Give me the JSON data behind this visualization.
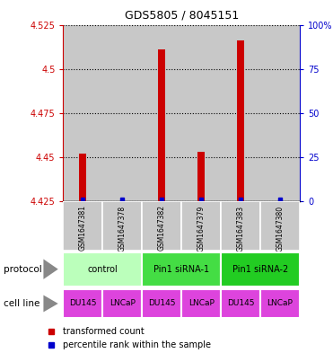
{
  "title": "GDS5805 / 8045151",
  "samples": [
    "GSM1647381",
    "GSM1647378",
    "GSM1647382",
    "GSM1647379",
    "GSM1647383",
    "GSM1647380"
  ],
  "red_values": [
    4.452,
    4.425,
    4.511,
    4.453,
    4.516,
    4.425
  ],
  "blue_percentiles": [
    2,
    2,
    2,
    2,
    3,
    2
  ],
  "ylim_left": [
    4.425,
    4.525
  ],
  "ylim_right": [
    0,
    100
  ],
  "yticks_left": [
    4.425,
    4.45,
    4.475,
    4.5,
    4.525
  ],
  "yticks_right": [
    0,
    25,
    50,
    75,
    100
  ],
  "ytick_labels_left": [
    "4.425",
    "4.45",
    "4.475",
    "4.5",
    "4.525"
  ],
  "ytick_labels_right": [
    "0",
    "25",
    "50",
    "75",
    "100%"
  ],
  "protocols": [
    {
      "label": "control",
      "span": [
        0,
        2
      ],
      "color": "#bbffbb"
    },
    {
      "label": "Pin1 siRNA-1",
      "span": [
        2,
        4
      ],
      "color": "#44dd44"
    },
    {
      "label": "Pin1 siRNA-2",
      "span": [
        4,
        6
      ],
      "color": "#22cc22"
    }
  ],
  "cell_lines": [
    {
      "label": "DU145",
      "color": "#dd44dd"
    },
    {
      "label": "LNCaP",
      "color": "#dd44dd"
    },
    {
      "label": "DU145",
      "color": "#dd44dd"
    },
    {
      "label": "LNCaP",
      "color": "#dd44dd"
    },
    {
      "label": "DU145",
      "color": "#dd44dd"
    },
    {
      "label": "LNCaP",
      "color": "#dd44dd"
    }
  ],
  "red_color": "#cc0000",
  "blue_color": "#0000cc",
  "left_tick_color": "#cc0000",
  "right_tick_color": "#0000cc",
  "sample_bg_color": "#c8c8c8",
  "plot_bg_color": "#ffffff",
  "protocol_label": "protocol",
  "cell_line_label": "cell line",
  "legend_red": "transformed count",
  "legend_blue": "percentile rank within the sample"
}
